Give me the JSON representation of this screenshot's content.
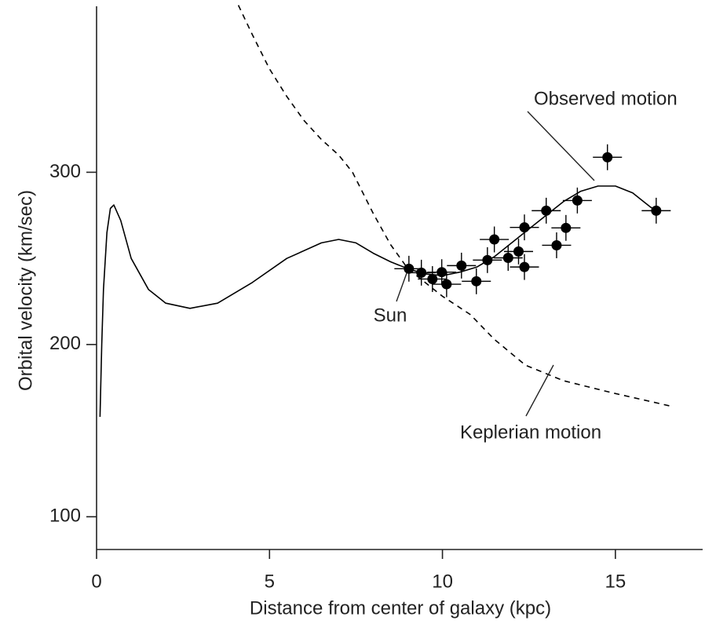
{
  "chart_data": {
    "type": "scatter",
    "x_label": "Distance from center of galaxy (kpc)",
    "y_label": "Orbital velocity (km/sec)",
    "xlim": [
      0,
      17.5
    ],
    "ylim": [
      81,
      400
    ],
    "xticks": [
      0,
      5,
      10,
      15
    ],
    "yticks": [
      100,
      200,
      300
    ],
    "series": [
      {
        "name": "Observed motion",
        "color": "#000000",
        "style": "solid",
        "x": [
          0.1,
          0.15,
          0.2,
          0.3,
          0.4,
          0.5,
          0.7,
          1,
          1.5,
          2,
          2.7,
          3.5,
          4.5,
          5.5,
          6.5,
          7,
          7.5,
          8,
          8.5,
          9,
          9.5,
          10,
          10.5,
          11,
          11.5,
          12,
          12.5,
          13,
          13.5,
          14,
          14.5,
          15,
          15.5,
          16,
          16.3
        ],
        "values": [
          158,
          200,
          232,
          265,
          279,
          281,
          272,
          250,
          232,
          224,
          221,
          224,
          236,
          250,
          259,
          261,
          259,
          253,
          248,
          244,
          241,
          240,
          242,
          245,
          251,
          259,
          267,
          275,
          283,
          289,
          292,
          292,
          288,
          280,
          276
        ]
      },
      {
        "name": "Keplerian motion",
        "color": "#000000",
        "style": "dashed",
        "x": [
          4.1,
          4.5,
          5,
          5.5,
          6,
          6.5,
          7,
          7.4,
          8,
          8.5,
          9,
          10,
          10.8,
          11.5,
          12.4,
          13.5,
          14.9,
          16,
          16.65
        ],
        "values": [
          397,
          380,
          360,
          344,
          330,
          319,
          310,
          300,
          276,
          258,
          244,
          228,
          217.5,
          203,
          188,
          179,
          172,
          167,
          164
        ]
      },
      {
        "name": "Sun",
        "color": "#000000",
        "style": "points",
        "xerr": 0.42,
        "yerr": 7.5,
        "x": [
          9.03,
          9.39,
          9.71,
          9.98,
          10.12,
          10.55,
          10.98,
          11.3,
          11.5,
          11.9,
          12.2,
          12.37,
          12.37,
          13.0,
          13.3,
          13.57,
          13.9,
          14.77,
          16.18
        ],
        "values": [
          244,
          241.7,
          238,
          242,
          235,
          245.8,
          236.7,
          249,
          261,
          250.3,
          254,
          268,
          245,
          277.7,
          257.6,
          267.7,
          283.6,
          308.7,
          277.7
        ]
      }
    ]
  }
}
